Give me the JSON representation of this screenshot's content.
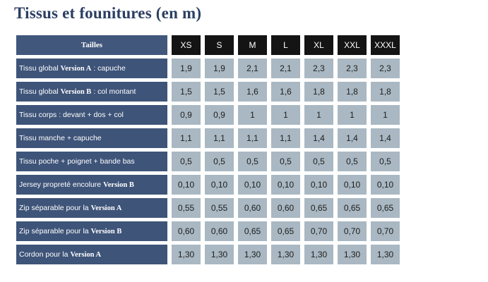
{
  "title": "Tissus et founitures (en m)",
  "table": {
    "header_label": "Tailles",
    "sizes": [
      "XS",
      "S",
      "M",
      "L",
      "XL",
      "XXL",
      "XXXL"
    ],
    "rows": [
      {
        "label_pre": "Tissu global",
        "label_bold": "Version A",
        "label_post": ": capuche",
        "values": [
          "1,9",
          "1,9",
          "2,1",
          "2,1",
          "2,3",
          "2,3",
          "2,3"
        ]
      },
      {
        "label_pre": "Tissu global",
        "label_bold": "Version B",
        "label_post": ": col montant",
        "values": [
          "1,5",
          "1,5",
          "1,6",
          "1,6",
          "1,8",
          "1,8",
          "1,8"
        ]
      },
      {
        "label_pre": "Tissu corps : devant + dos + col",
        "label_bold": "",
        "label_post": "",
        "values": [
          "0,9",
          "0,9",
          "1",
          "1",
          "1",
          "1",
          "1"
        ]
      },
      {
        "label_pre": "Tissu manche + capuche",
        "label_bold": "",
        "label_post": "",
        "values": [
          "1,1",
          "1,1",
          "1,1",
          "1,1",
          "1,4",
          "1,4",
          "1,4"
        ]
      },
      {
        "label_pre": "Tissu poche + poignet + bande bas",
        "label_bold": "",
        "label_post": "",
        "values": [
          "0,5",
          "0,5",
          "0,5",
          "0,5",
          "0,5",
          "0,5",
          "0,5"
        ]
      },
      {
        "label_pre": "Jersey propreté encolure",
        "label_bold": "Version B",
        "label_post": "",
        "values": [
          "0,10",
          "0,10",
          "0,10",
          "0,10",
          "0,10",
          "0,10",
          "0,10"
        ]
      },
      {
        "label_pre": "Zip séparable pour la",
        "label_bold": "Version A",
        "label_post": "",
        "values": [
          "0,55",
          "0,55",
          "0,60",
          "0,60",
          "0,65",
          "0,65",
          "0,65"
        ]
      },
      {
        "label_pre": "Zip séparable pour la",
        "label_bold": "Version B",
        "label_post": "",
        "values": [
          "0,60",
          "0,60",
          "0,65",
          "0,65",
          "0,70",
          "0,70",
          "0,70"
        ]
      },
      {
        "label_pre": "Cordon pour la",
        "label_bold": "Version A",
        "label_post": "",
        "values": [
          "1,30",
          "1,30",
          "1,30",
          "1,30",
          "1,30",
          "1,30",
          "1,30"
        ]
      }
    ]
  }
}
